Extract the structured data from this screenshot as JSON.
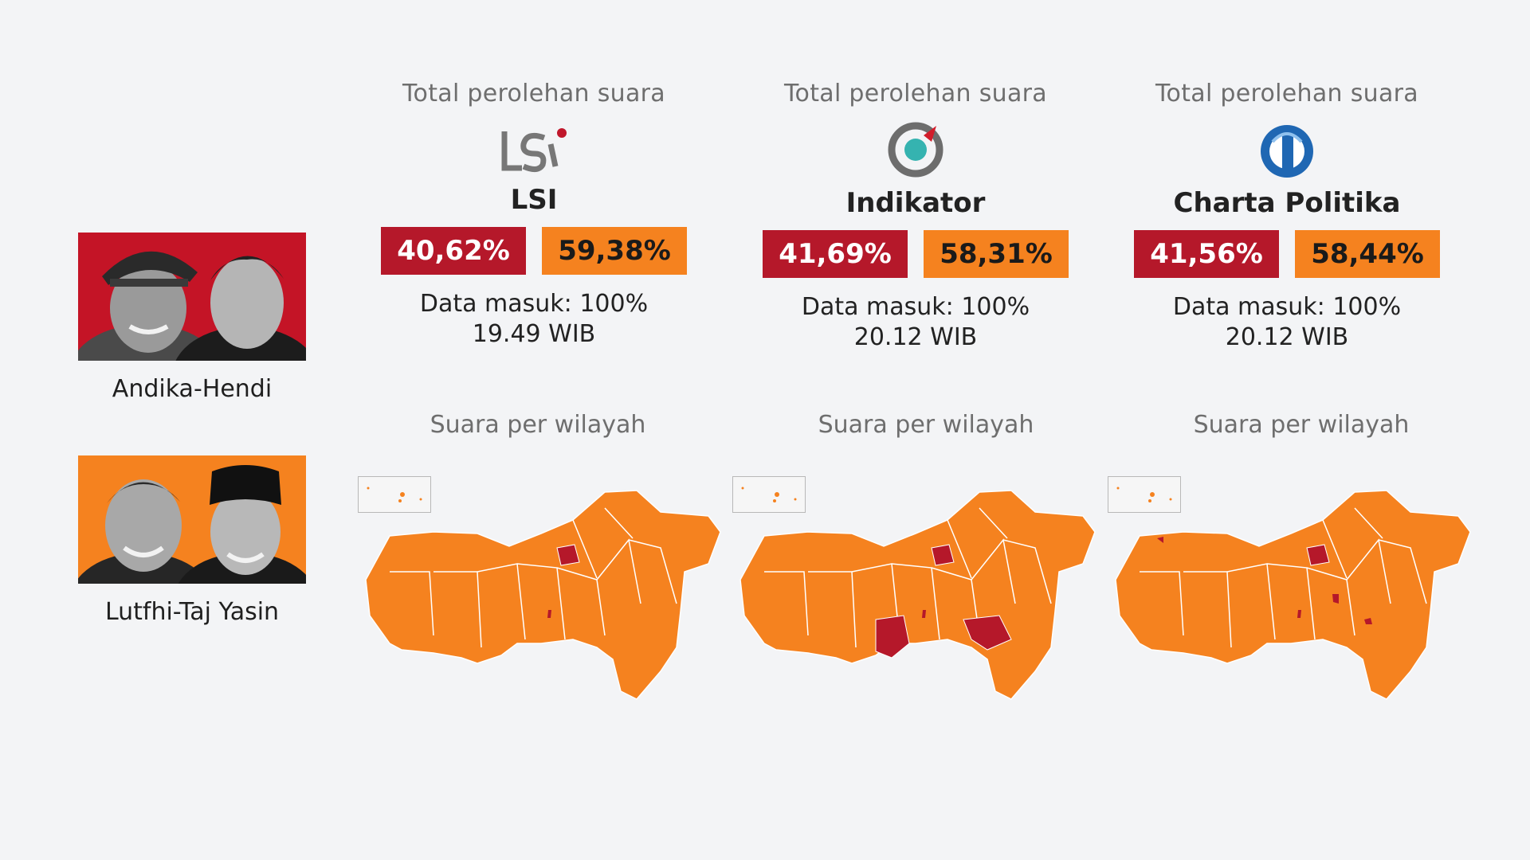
{
  "candidates": [
    {
      "name": "Andika-Hendi",
      "color": "#b5182a"
    },
    {
      "name": "Lutfhi-Taj Yasin",
      "color": "#f5821f"
    }
  ],
  "pollsters": [
    {
      "label_top": "Total perolehan suara",
      "name": "LSI",
      "logo_icon": "lsi-logo-icon",
      "result_andika": "40,62%",
      "result_lutfhi": "59,38%",
      "data_in": "Data masuk: 100%",
      "time": "19.49 WIB",
      "region_label": "Suara per wilayah"
    },
    {
      "label_top": "Total perolehan suara",
      "name": "Indikator",
      "logo_icon": "indikator-logo-icon",
      "result_andika": "41,69%",
      "result_lutfhi": "58,31%",
      "data_in": "Data masuk: 100%",
      "time": "20.12 WIB",
      "region_label": "Suara per wilayah"
    },
    {
      "label_top": "Total perolehan suara",
      "name": "Charta Politika",
      "logo_icon": "charta-politika-logo-icon",
      "result_andika": "41,56%",
      "result_lutfhi": "58,44%",
      "data_in": "Data masuk: 100%",
      "time": "20.12 WIB",
      "region_label": "Suara per wilayah"
    }
  ],
  "chart_data": {
    "type": "bar",
    "title": "Total perolehan suara",
    "categories": [
      "LSI",
      "Indikator",
      "Charta Politika"
    ],
    "series": [
      {
        "name": "Andika-Hendi",
        "values": [
          40.62,
          41.69,
          41.56
        ]
      },
      {
        "name": "Lutfhi-Taj Yasin",
        "values": [
          59.38,
          58.31,
          58.44
        ]
      }
    ],
    "units": "%",
    "data_masuk_percent": [
      100,
      100,
      100
    ]
  }
}
